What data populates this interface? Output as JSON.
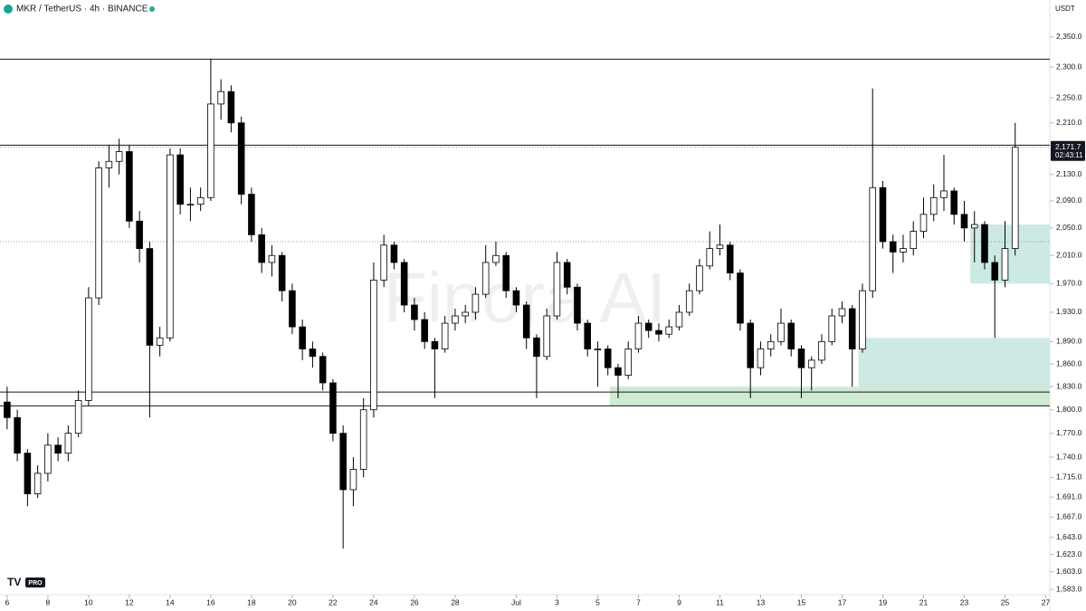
{
  "chart_data": {
    "type": "candlestick",
    "title": "MKR / TetherUS · 4h · BINANCE",
    "currency_button": "USDT",
    "watermark": "Finora AI",
    "logo_badge": "PRO",
    "last_price_label": "2,171.7",
    "countdown": "02:43:11",
    "log_scale": true,
    "up_color": "#ffffff",
    "down_color": "#000000",
    "outline_color": "#000000",
    "xlim": [
      5.65,
      57.2
    ],
    "ylim": [
      1577,
      2413
    ],
    "xticks": [
      6,
      8,
      10,
      12,
      14,
      16,
      18,
      20,
      22,
      24,
      26,
      28,
      {
        "value": 31,
        "label": "Jul"
      },
      {
        "value": 33,
        "label": "3"
      },
      {
        "value": 35,
        "label": "5"
      },
      {
        "value": 37,
        "label": "7"
      },
      {
        "value": 39,
        "label": "9"
      },
      {
        "value": 41,
        "label": "11"
      },
      {
        "value": 43,
        "label": "13"
      },
      {
        "value": 45,
        "label": "15"
      },
      {
        "value": 47,
        "label": "17"
      },
      {
        "value": 49,
        "label": "19"
      },
      {
        "value": 51,
        "label": "21"
      },
      {
        "value": 53,
        "label": "23"
      },
      {
        "value": 55,
        "label": "25"
      },
      {
        "value": 57,
        "label": "27"
      }
    ],
    "yticks": [
      {
        "value": 2350,
        "label": "2,350.0"
      },
      {
        "value": 2300,
        "label": "2,300.0"
      },
      {
        "value": 2250,
        "label": "2,250.0"
      },
      {
        "value": 2210,
        "label": "2,210.0"
      },
      {
        "value": 2130,
        "label": "2,130.0"
      },
      {
        "value": 2090,
        "label": "2,090.0"
      },
      {
        "value": 2050,
        "label": "2,050.0"
      },
      {
        "value": 2010,
        "label": "2,010.0"
      },
      {
        "value": 1970,
        "label": "1,970.0"
      },
      {
        "value": 1930,
        "label": "1,930.0"
      },
      {
        "value": 1890,
        "label": "1,890.0"
      },
      {
        "value": 1860,
        "label": "1,860.0"
      },
      {
        "value": 1830,
        "label": "1,830.0"
      },
      {
        "value": 1800,
        "label": "1,800.0"
      },
      {
        "value": 1770,
        "label": "1,770.0"
      },
      {
        "value": 1740,
        "label": "1,740.0"
      },
      {
        "value": 1715,
        "label": "1,715.0"
      },
      {
        "value": 1691,
        "label": "1,691.0"
      },
      {
        "value": 1667,
        "label": "1,667.0"
      },
      {
        "value": 1643,
        "label": "1,643.0"
      },
      {
        "value": 1623,
        "label": "1,623.0"
      },
      {
        "value": 1603,
        "label": "1,603.0"
      },
      {
        "value": 1583,
        "label": "1,583.0"
      }
    ],
    "levels": [
      2313,
      2175,
      1823,
      1805
    ],
    "dotted_levels": [
      2171.7,
      2030
    ],
    "zones": [
      {
        "x0": 53.3,
        "y": [
          1970,
          2055
        ],
        "color": "#cde9e5"
      },
      {
        "x0": 47.8,
        "y": [
          1825,
          1895
        ],
        "color": "#cde9e5"
      },
      {
        "x0": 35.6,
        "y": [
          1805,
          1830
        ],
        "color": "#cfead2"
      }
    ],
    "x": [
      6.0,
      6.5,
      7.0,
      7.5,
      8.0,
      8.5,
      9.0,
      9.5,
      10.0,
      10.5,
      11.0,
      11.5,
      12.0,
      12.5,
      13.0,
      13.5,
      14.0,
      14.5,
      15.0,
      15.5,
      16.0,
      16.5,
      17.0,
      17.5,
      18.0,
      18.5,
      19.0,
      19.5,
      20.0,
      20.5,
      21.0,
      21.5,
      22.0,
      22.5,
      23.0,
      23.5,
      24.0,
      24.5,
      25.0,
      25.5,
      26.0,
      26.5,
      27.0,
      27.5,
      28.0,
      28.5,
      29.0,
      29.5,
      30.0,
      30.5,
      31.0,
      31.5,
      32.0,
      32.5,
      33.0,
      33.5,
      34.0,
      34.5,
      35.0,
      35.5,
      36.0,
      36.5,
      37.0,
      37.5,
      38.0,
      38.5,
      39.0,
      39.5,
      40.0,
      40.5,
      41.0,
      41.5,
      42.0,
      42.5,
      43.0,
      43.5,
      44.0,
      44.5,
      45.0,
      45.5,
      46.0,
      46.5,
      47.0,
      47.5,
      48.0,
      48.5,
      49.0,
      49.5,
      50.0,
      50.5,
      51.0,
      51.5,
      52.0,
      52.5,
      53.0,
      53.5,
      54.0,
      54.5,
      55.0,
      55.5
    ],
    "open": [
      1810,
      1790,
      1745,
      1695,
      1720,
      1755,
      1745,
      1770,
      1812,
      1950,
      2140,
      2150,
      2165,
      2060,
      2020,
      1885,
      1895,
      2160,
      2085,
      2085,
      2095,
      2240,
      2260,
      2210,
      2100,
      2040,
      2000,
      2010,
      1960,
      1910,
      1880,
      1870,
      1835,
      1770,
      1700,
      1725,
      1800,
      1975,
      2025,
      2000,
      1940,
      1920,
      1890,
      1880,
      1915,
      1925,
      1930,
      1955,
      2000,
      2010,
      1960,
      1940,
      1895,
      1870,
      1925,
      2000,
      1965,
      1915,
      1880,
      1880,
      1855,
      1845,
      1880,
      1915,
      1905,
      1900,
      1910,
      1930,
      1960,
      1995,
      2020,
      2025,
      1985,
      1915,
      1855,
      1880,
      1890,
      1915,
      1880,
      1855,
      1865,
      1890,
      1925,
      1935,
      1880,
      1960,
      2110,
      2030,
      2015,
      2020,
      2045,
      2070,
      2095,
      2105,
      2070,
      2050,
      2055,
      2000,
      1975,
      2020
    ],
    "high": [
      1830,
      1800,
      1750,
      1730,
      1770,
      1765,
      1780,
      1825,
      1965,
      2150,
      2175,
      2185,
      2175,
      2075,
      2030,
      1910,
      2170,
      2170,
      2110,
      2110,
      2313,
      2280,
      2270,
      2220,
      2110,
      2050,
      2025,
      2015,
      1970,
      1920,
      1890,
      1875,
      1840,
      1780,
      1740,
      1815,
      2000,
      2040,
      2030,
      2005,
      1950,
      1930,
      1895,
      1925,
      1935,
      1940,
      1965,
      2025,
      2030,
      2015,
      1965,
      1945,
      1900,
      1935,
      2015,
      2005,
      1970,
      1920,
      1890,
      1885,
      1860,
      1890,
      1925,
      1920,
      1915,
      1920,
      1940,
      1970,
      2005,
      2045,
      2055,
      2030,
      1990,
      1920,
      1890,
      1900,
      1935,
      1920,
      1885,
      1870,
      1900,
      1935,
      1945,
      1940,
      1970,
      2265,
      2120,
      2040,
      2040,
      2060,
      2095,
      2115,
      2160,
      2110,
      2090,
      2075,
      2060,
      2010,
      2060,
      2210
    ],
    "low": [
      1775,
      1735,
      1680,
      1690,
      1710,
      1735,
      1735,
      1765,
      1805,
      1940,
      2110,
      2130,
      2050,
      2000,
      1790,
      1870,
      1890,
      2070,
      2060,
      2075,
      2090,
      2215,
      2195,
      2085,
      2030,
      1985,
      1980,
      1945,
      1900,
      1865,
      1855,
      1825,
      1760,
      1630,
      1680,
      1715,
      1790,
      1965,
      1990,
      1930,
      1905,
      1880,
      1815,
      1875,
      1905,
      1915,
      1920,
      1950,
      1995,
      1950,
      1930,
      1880,
      1815,
      1865,
      1920,
      1955,
      1905,
      1870,
      1830,
      1845,
      1815,
      1840,
      1875,
      1895,
      1890,
      1895,
      1905,
      1925,
      1955,
      1990,
      2010,
      1975,
      1905,
      1815,
      1845,
      1870,
      1885,
      1870,
      1815,
      1825,
      1860,
      1885,
      1915,
      1830,
      1875,
      1950,
      2020,
      1985,
      2000,
      2010,
      2035,
      2060,
      2075,
      2055,
      2030,
      2000,
      1990,
      1895,
      1965,
      2010
    ],
    "close": [
      1790,
      1745,
      1695,
      1720,
      1755,
      1745,
      1770,
      1812,
      1950,
      2140,
      2150,
      2165,
      2060,
      2020,
      1885,
      1895,
      2160,
      2085,
      2085,
      2095,
      2240,
      2260,
      2210,
      2100,
      2040,
      2000,
      2010,
      1960,
      1910,
      1880,
      1870,
      1835,
      1770,
      1700,
      1725,
      1800,
      1975,
      2025,
      2000,
      1940,
      1920,
      1890,
      1880,
      1915,
      1925,
      1930,
      1955,
      2000,
      2010,
      1960,
      1940,
      1895,
      1870,
      1925,
      2000,
      1965,
      1915,
      1880,
      1880,
      1855,
      1845,
      1880,
      1915,
      1905,
      1900,
      1910,
      1930,
      1960,
      1995,
      2020,
      2025,
      1985,
      1915,
      1855,
      1880,
      1890,
      1915,
      1880,
      1855,
      1865,
      1890,
      1925,
      1935,
      1880,
      1960,
      2110,
      2030,
      2015,
      2020,
      2045,
      2070,
      2095,
      2105,
      2070,
      2050,
      2055,
      2000,
      1975,
      2020,
      2171.7
    ]
  }
}
